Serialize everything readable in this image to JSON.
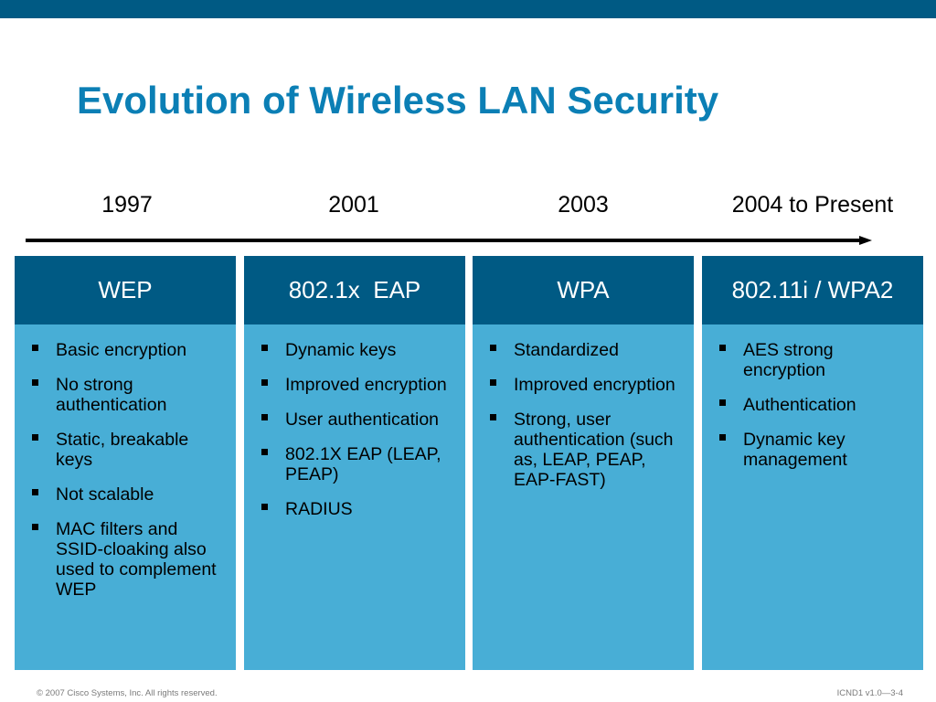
{
  "slide": {
    "title": "Evolution of Wireless LAN Security"
  },
  "timeline": {
    "years": [
      "1997",
      "2001",
      "2003",
      "2004 to Present"
    ]
  },
  "columns": [
    {
      "header": "WEP",
      "items": [
        "Basic encryption",
        "No strong authentication",
        "Static, breakable keys",
        "Not scalable",
        "MAC filters and SSID-cloaking also used to complement WEP"
      ]
    },
    {
      "header": "802.1x  EAP",
      "items": [
        "Dynamic keys",
        "Improved encryption",
        "User authentication",
        "802.1X EAP (LEAP, PEAP)",
        "RADIUS"
      ]
    },
    {
      "header": "WPA",
      "items": [
        "Standardized",
        "Improved encryption",
        "Strong, user authentication (such as, LEAP, PEAP, EAP-FAST)"
      ]
    },
    {
      "header": "802.11i / WPA2",
      "items": [
        "AES strong encryption",
        "Authentication",
        "Dynamic key management"
      ]
    }
  ],
  "footer": {
    "copyright": "© 2007 Cisco Systems, Inc. All rights reserved.",
    "slide_id": "ICND1 v1.0—3-4"
  },
  "colors": {
    "header_bar": "#005a84",
    "title": "#0b7fb5",
    "column_body": "#48aed6"
  }
}
